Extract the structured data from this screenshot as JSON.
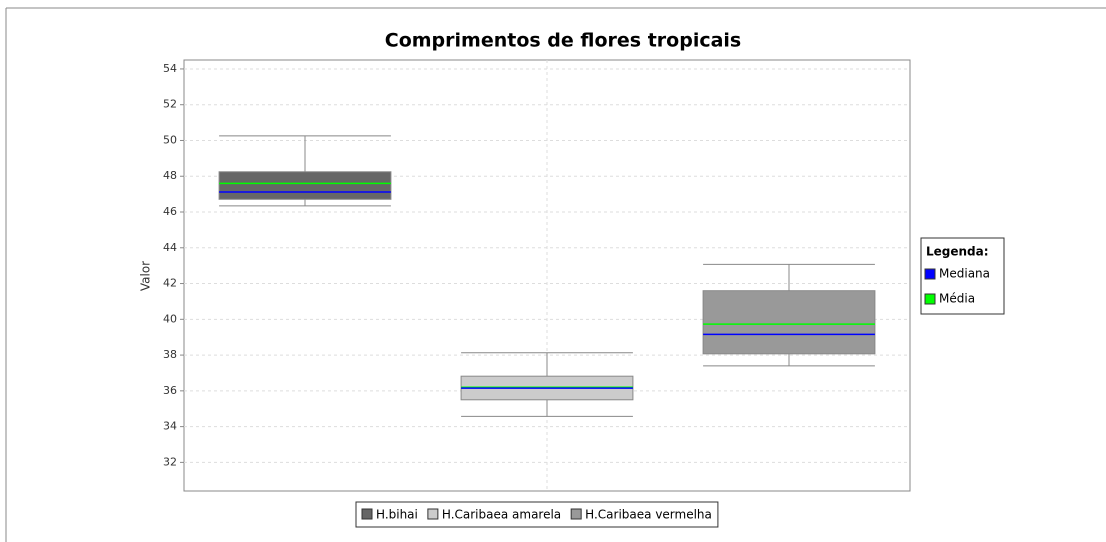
{
  "chart_data": {
    "type": "box",
    "title": "Comprimentos de flores tropicais",
    "y_label": "Valor",
    "ylim": [
      30.4,
      54.5
    ],
    "yticks": [
      32,
      34,
      36,
      38,
      40,
      42,
      44,
      46,
      48,
      50,
      52,
      54
    ],
    "grid": true,
    "series": [
      {
        "name": "H.bihai",
        "color": "#666666",
        "min": 46.34,
        "q1": 46.71,
        "median": 47.12,
        "q3": 48.25,
        "max": 50.26,
        "mean": 47.6
      },
      {
        "name": "H.Caribaea amarela",
        "color": "#cccccc",
        "min": 34.57,
        "q1": 35.5,
        "median": 36.15,
        "q3": 36.82,
        "max": 38.13,
        "mean": 36.2
      },
      {
        "name": "H.Caribaea vermelha",
        "color": "#999999",
        "min": 37.4,
        "q1": 38.07,
        "median": 39.16,
        "q3": 41.6,
        "max": 43.07,
        "mean": 39.73
      }
    ],
    "stat_legend": {
      "title": "Legenda:",
      "position": "right",
      "items": [
        {
          "name": "Mediana",
          "color": "#0000ff"
        },
        {
          "name": "Média",
          "color": "#00ff00"
        }
      ]
    },
    "legend_position": "bottom"
  }
}
